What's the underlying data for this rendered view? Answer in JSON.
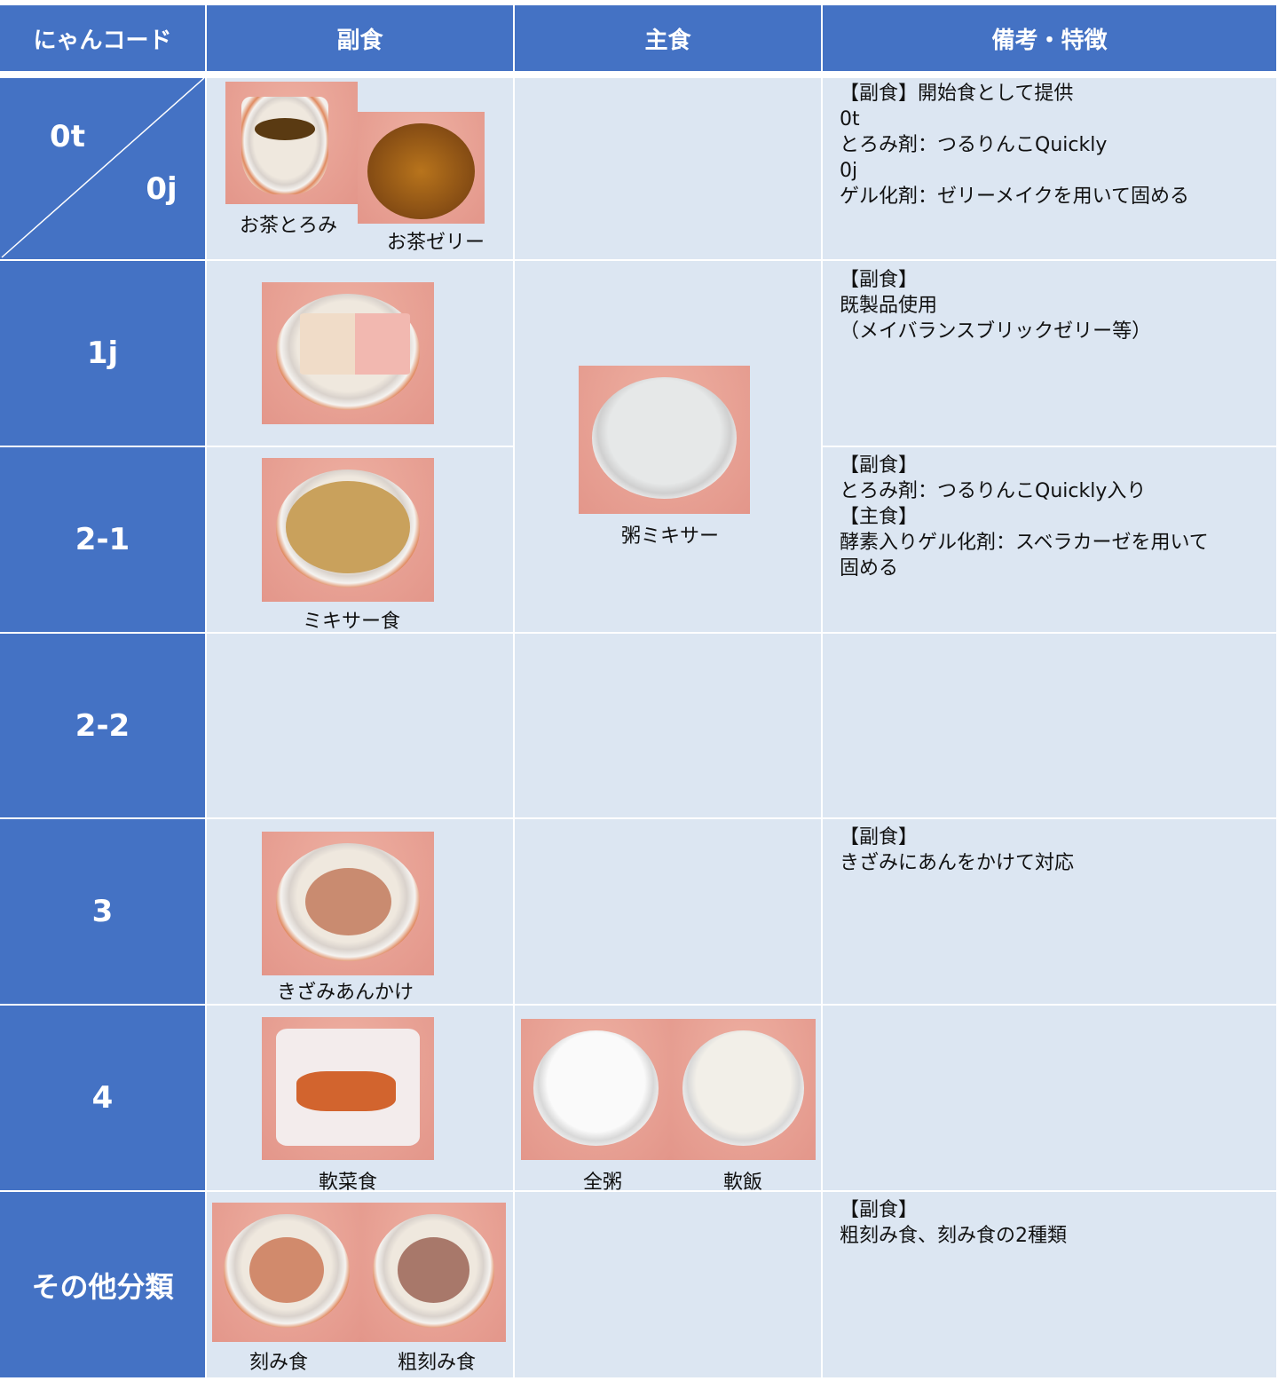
{
  "table": {
    "header": [
      "にゃんコード",
      "副食",
      "主食",
      "備考・特徴"
    ],
    "rows": [
      {
        "codes": [
          "0t",
          "0j"
        ],
        "side_captions": [
          "お茶とろみ",
          "お茶ゼリー"
        ],
        "notes": [
          "【副食】開始食として提供",
          "0t",
          "とろみ剤：つるりんこQuickly",
          "0j",
          "ゲル化剤：ゼリーメイクを用いて固める"
        ]
      },
      {
        "code": "1j",
        "main_captions": [
          "粥ミキサー"
        ],
        "notes": [
          "【副食】",
          "既製品使用",
          "（メイバランスブリックゼリー等）"
        ]
      },
      {
        "code": "2-1",
        "side_captions": [
          "ミキサー食"
        ],
        "notes": [
          "【副食】",
          "とろみ剤：つるりんこQuickly入り",
          "【主食】",
          "酵素入りゲル化剤：スベラカーゼを用いて",
          "固める"
        ]
      },
      {
        "code": "2-2"
      },
      {
        "code": "3",
        "side_captions": [
          "きざみあんかけ"
        ],
        "notes": [
          "【副食】",
          "きざみにあんをかけて対応"
        ]
      },
      {
        "code": "4",
        "side_captions": [
          "軟菜食"
        ],
        "main_captions": [
          "全粥",
          "軟飯"
        ]
      },
      {
        "code": "その他分類",
        "side_captions": [
          "刻み食",
          "粗刻み食"
        ],
        "notes": [
          "【副食】",
          "粗刻み食、刻み食の2種類"
        ]
      }
    ]
  }
}
